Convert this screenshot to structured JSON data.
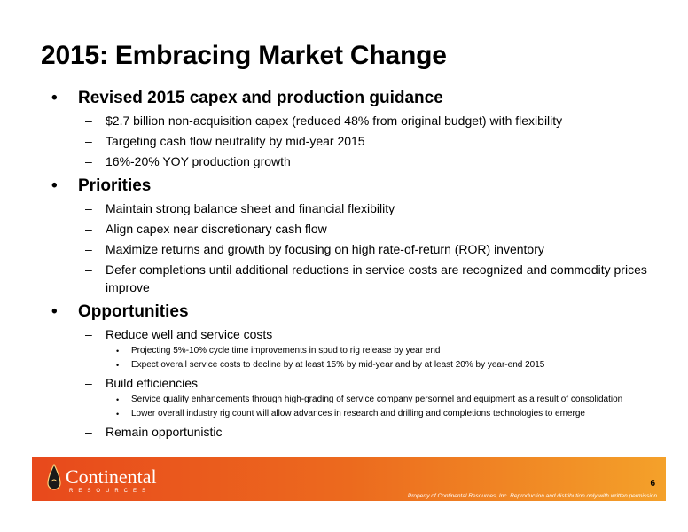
{
  "slide": {
    "title": "2015: Embracing Market Change",
    "sections": [
      {
        "heading": "Revised 2015 capex and production guidance",
        "items": [
          {
            "text": "$2.7 billion non-acquisition capex (reduced 48% from original budget) with flexibility"
          },
          {
            "text": "Targeting cash flow neutrality by mid-year 2015"
          },
          {
            "text": "16%-20% YOY production growth"
          }
        ]
      },
      {
        "heading": "Priorities",
        "items": [
          {
            "text": "Maintain strong balance sheet and financial flexibility"
          },
          {
            "text": "Align capex near discretionary cash flow"
          },
          {
            "text": "Maximize returns and growth by focusing on high rate-of-return (ROR) inventory"
          },
          {
            "text": "Defer completions until additional reductions in service costs are recognized and commodity prices improve"
          }
        ]
      },
      {
        "heading": "Opportunities",
        "items": [
          {
            "text": "Reduce well and service costs",
            "subitems": [
              "Projecting 5%-10% cycle time improvements in spud to rig release by year end",
              "Expect overall service costs to decline by at least 15% by mid-year and by at least 20% by year-end 2015"
            ]
          },
          {
            "text": "Build efficiencies",
            "subitems": [
              "Service quality enhancements through high-grading of service company personnel and equipment as a result of consolidation",
              "Lower overall industry rig count will allow advances in research and drilling and completions technologies to emerge"
            ]
          },
          {
            "text": "Remain opportunistic"
          }
        ]
      }
    ],
    "bullet_char": "•",
    "dash_char": "–"
  },
  "footer": {
    "logo_text": "Continental",
    "logo_subtext": "RESOURCES",
    "page_number": "6",
    "copyright": "Property of Continental Resources, Inc. Reproduction and distribution only with written permission",
    "colors": {
      "start": "#e8491c",
      "mid": "#ec6a1e",
      "end": "#f4a12a"
    }
  }
}
